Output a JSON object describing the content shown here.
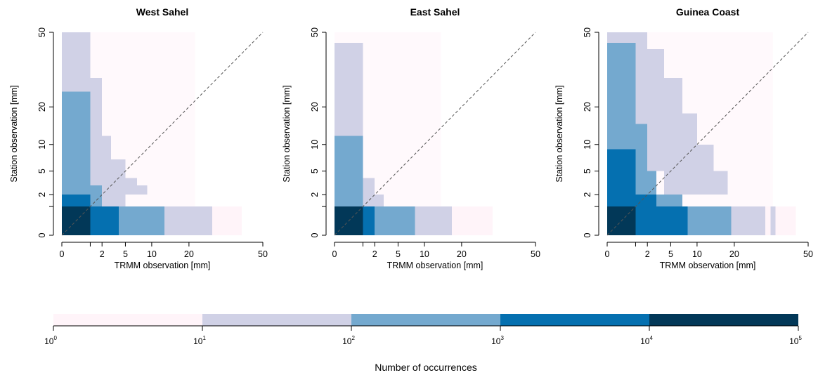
{
  "chart_data": {
    "type": "heatmap",
    "x_scale": "sqrt",
    "y_scale": "sqrt",
    "xlim": [
      0,
      50
    ],
    "ylim": [
      0,
      50
    ],
    "x_ticks": [
      0,
      1,
      2,
      5,
      10,
      20,
      50
    ],
    "x_tick_labels": [
      "0",
      "",
      "2",
      "5",
      "10",
      "20",
      "50"
    ],
    "y_ticks": [
      0,
      1,
      2,
      5,
      10,
      20,
      50
    ],
    "y_tick_labels": [
      "0",
      "",
      "2",
      "5",
      "10",
      "20",
      "50"
    ],
    "xlabel": "TRMM observation [mm]",
    "ylabel": "Station observation [mm]",
    "reference_line": "1:1 dashed",
    "color_levels": [
      {
        "range": "1-10",
        "color": "#fff4f9"
      },
      {
        "range": "10-100",
        "color": "#d0d1e6"
      },
      {
        "range": "100-1000",
        "color": "#74a9cf"
      },
      {
        "range": "1000-10000",
        "color": "#0570b0"
      },
      {
        "range": "10000-100000",
        "color": "#023858"
      }
    ],
    "panels": [
      {
        "title": "West Sahel",
        "cells": [
          {
            "x": [
              0,
              1
            ],
            "y": [
              0,
              1
            ],
            "level": 4
          },
          {
            "x": [
              1,
              4
            ],
            "y": [
              0,
              1
            ],
            "level": 3
          },
          {
            "x": [
              4,
              13
            ],
            "y": [
              0,
              1
            ],
            "level": 2
          },
          {
            "x": [
              13,
              28
            ],
            "y": [
              0,
              1
            ],
            "level": 1
          },
          {
            "x": [
              28,
              40
            ],
            "y": [
              0,
              1
            ],
            "level": 0
          },
          {
            "x": [
              0,
              1
            ],
            "y": [
              1,
              2
            ],
            "level": 3
          },
          {
            "x": [
              1,
              2
            ],
            "y": [
              1,
              2
            ],
            "level": 2
          },
          {
            "x": [
              2,
              5
            ],
            "y": [
              1,
              2
            ],
            "level": 1
          },
          {
            "x": [
              0,
              1
            ],
            "y": [
              2,
              25
            ],
            "level": 2
          },
          {
            "x": [
              1,
              2
            ],
            "y": [
              2,
              3
            ],
            "level": 2
          },
          {
            "x": [
              0,
              1
            ],
            "y": [
              25,
              50
            ],
            "level": 1
          },
          {
            "x": [
              1,
              2
            ],
            "y": [
              3,
              30
            ],
            "level": 1
          },
          {
            "x": [
              2,
              3
            ],
            "y": [
              2,
              12
            ],
            "level": 1
          },
          {
            "x": [
              3,
              5
            ],
            "y": [
              2,
              7
            ],
            "level": 1
          },
          {
            "x": [
              5,
              7
            ],
            "y": [
              2,
              4
            ],
            "level": 1
          },
          {
            "x": [
              7,
              9
            ],
            "y": [
              2,
              3
            ],
            "level": 1
          }
        ],
        "faint_region": {
          "x_max": 22,
          "y_max": 50
        }
      },
      {
        "title": "East Sahel",
        "cells": [
          {
            "x": [
              0,
              1
            ],
            "y": [
              0,
              1
            ],
            "level": 4
          },
          {
            "x": [
              1,
              2
            ],
            "y": [
              0,
              1
            ],
            "level": 3
          },
          {
            "x": [
              2,
              8
            ],
            "y": [
              0,
              1
            ],
            "level": 2
          },
          {
            "x": [
              8,
              17
            ],
            "y": [
              0,
              1
            ],
            "level": 1
          },
          {
            "x": [
              17,
              31
            ],
            "y": [
              0,
              1
            ],
            "level": 0
          },
          {
            "x": [
              0,
              1
            ],
            "y": [
              1,
              12
            ],
            "level": 2
          },
          {
            "x": [
              1,
              2
            ],
            "y": [
              1,
              2
            ],
            "level": 1
          },
          {
            "x": [
              2,
              3
            ],
            "y": [
              1,
              2
            ],
            "level": 1
          },
          {
            "x": [
              0,
              1
            ],
            "y": [
              12,
              45
            ],
            "level": 1
          },
          {
            "x": [
              1,
              2
            ],
            "y": [
              2,
              4
            ],
            "level": 1
          }
        ],
        "faint_region": {
          "x_max": 14,
          "y_max": 50
        }
      },
      {
        "title": "Guinea Coast",
        "cells": [
          {
            "x": [
              0,
              1
            ],
            "y": [
              0,
              1
            ],
            "level": 4
          },
          {
            "x": [
              1,
              8
            ],
            "y": [
              0,
              1
            ],
            "level": 3
          },
          {
            "x": [
              8,
              19
            ],
            "y": [
              0,
              1
            ],
            "level": 2
          },
          {
            "x": [
              19,
              31
            ],
            "y": [
              0,
              1
            ],
            "level": 1
          },
          {
            "x": [
              31,
              33
            ],
            "y": [
              0,
              1
            ],
            "level": 0
          },
          {
            "x": [
              33,
              35
            ],
            "y": [
              0,
              1
            ],
            "level": 1
          },
          {
            "x": [
              35,
              44
            ],
            "y": [
              0,
              1
            ],
            "level": 0
          },
          {
            "x": [
              0,
              1
            ],
            "y": [
              1,
              9
            ],
            "level": 3
          },
          {
            "x": [
              1,
              3
            ],
            "y": [
              1,
              2
            ],
            "level": 3
          },
          {
            "x": [
              3,
              7
            ],
            "y": [
              1,
              2
            ],
            "level": 2
          },
          {
            "x": [
              0,
              1
            ],
            "y": [
              9,
              45
            ],
            "level": 2
          },
          {
            "x": [
              1,
              2
            ],
            "y": [
              2,
              15
            ],
            "level": 2
          },
          {
            "x": [
              2,
              3
            ],
            "y": [
              2,
              5
            ],
            "level": 2
          },
          {
            "x": [
              0,
              1
            ],
            "y": [
              45,
              50
            ],
            "level": 1
          },
          {
            "x": [
              1,
              2
            ],
            "y": [
              15,
              50
            ],
            "level": 1
          },
          {
            "x": [
              2,
              4
            ],
            "y": [
              5,
              42
            ],
            "level": 1
          },
          {
            "x": [
              4,
              7
            ],
            "y": [
              2,
              30
            ],
            "level": 1
          },
          {
            "x": [
              7,
              10
            ],
            "y": [
              2,
              18
            ],
            "level": 1
          },
          {
            "x": [
              10,
              14
            ],
            "y": [
              2,
              10
            ],
            "level": 1
          },
          {
            "x": [
              14,
              18
            ],
            "y": [
              2,
              5
            ],
            "level": 1
          }
        ],
        "faint_region": {
          "x_max": 34,
          "y_max": 50
        }
      }
    ],
    "colorbar": {
      "scale": "log",
      "range": [
        1,
        100000
      ],
      "tick_bases": [
        "10",
        "10",
        "10",
        "10",
        "10",
        "10"
      ],
      "tick_exponents": [
        "0",
        "1",
        "2",
        "3",
        "4",
        "5"
      ],
      "label": "Number of occurrences"
    }
  }
}
